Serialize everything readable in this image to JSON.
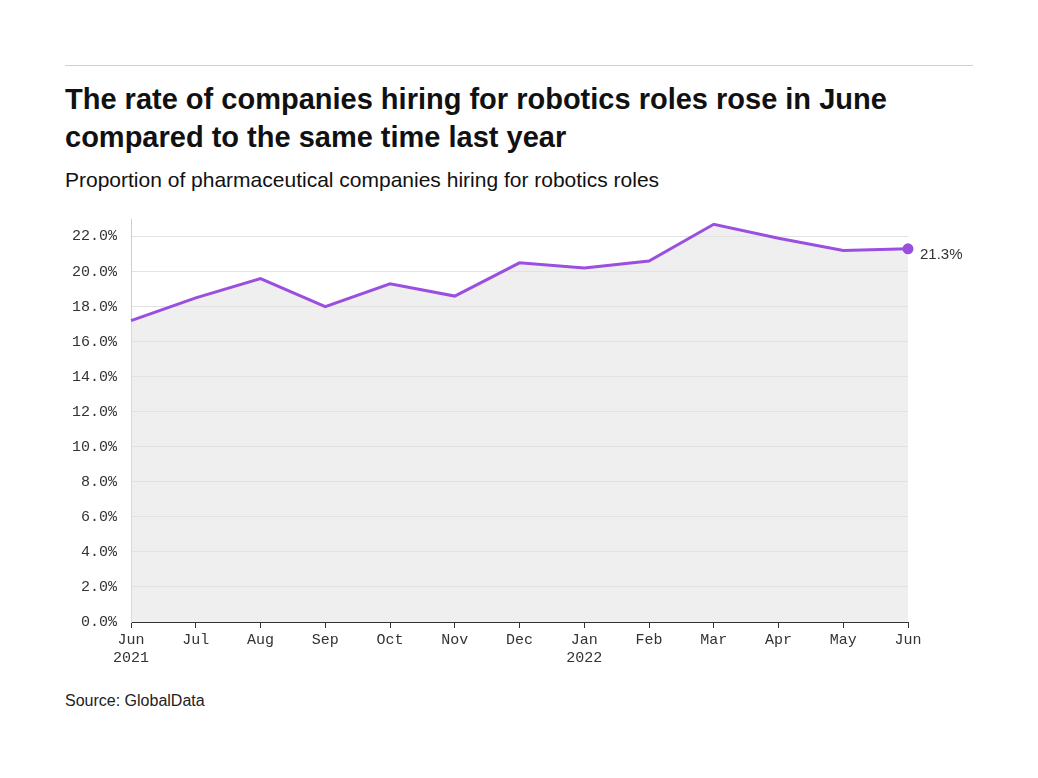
{
  "chart_data": {
    "type": "line",
    "title": "The rate of companies hiring for robotics roles rose in June compared to the same time last year",
    "subtitle": "Proportion of pharmaceutical companies hiring for robotics roles",
    "source": "Source: GlobalData",
    "categories": [
      "Jun 2021",
      "Jul",
      "Aug",
      "Sep",
      "Oct",
      "Nov",
      "Dec",
      "Jan 2022",
      "Feb",
      "Mar",
      "Apr",
      "May",
      "Jun"
    ],
    "values": [
      17.2,
      18.5,
      19.6,
      18.0,
      19.3,
      18.6,
      20.5,
      20.2,
      20.6,
      22.7,
      21.9,
      21.2,
      21.3
    ],
    "color": "#9b4fe0",
    "ylim": [
      0,
      23
    ],
    "yticks": [
      {
        "value": 0,
        "label": "0.0%"
      },
      {
        "value": 2,
        "label": "2.0%"
      },
      {
        "value": 4,
        "label": "4.0%"
      },
      {
        "value": 6,
        "label": "6.0%"
      },
      {
        "value": 8,
        "label": "8.0%"
      },
      {
        "value": 10,
        "label": "10.0%"
      },
      {
        "value": 12,
        "label": "12.0%"
      },
      {
        "value": 14,
        "label": "14.0%"
      },
      {
        "value": 16,
        "label": "16.0%"
      },
      {
        "value": 18,
        "label": "18.0%"
      },
      {
        "value": 20,
        "label": "20.0%"
      },
      {
        "value": 22,
        "label": "22.0%"
      }
    ],
    "grid": true,
    "annotations": [
      {
        "x": "Jun",
        "y": 21.3,
        "text": "21.3%"
      }
    ]
  }
}
